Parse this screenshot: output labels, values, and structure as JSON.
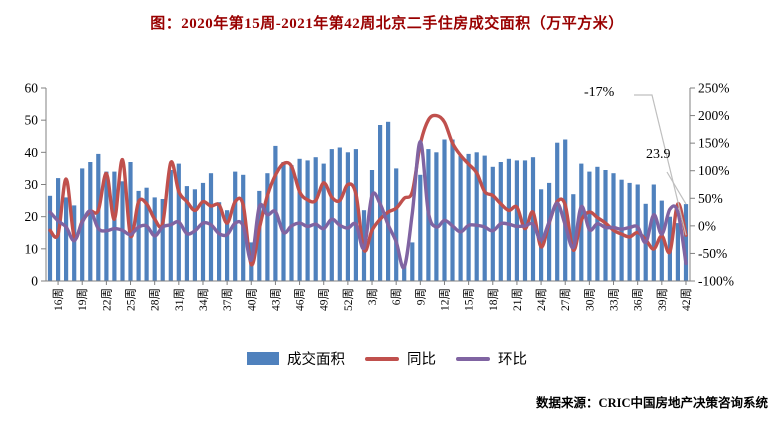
{
  "title": "图：2020年第15周-2021年第42周北京二手住房成交面积（万平方米）",
  "source": "数据来源：CRIC中国房地产决策咨询系统",
  "annotations": {
    "yoy_last_label": "-17%",
    "area_last_label": "23.9"
  },
  "legend": [
    {
      "label": "成交面积",
      "type": "bar",
      "color": "#4F81BD"
    },
    {
      "label": "同比",
      "type": "line",
      "color": "#C0504D"
    },
    {
      "label": "环比",
      "type": "line",
      "color": "#8064A2"
    }
  ],
  "colors": {
    "bar": "#4F81BD",
    "yoy_line": "#C0504D",
    "wow_line": "#8064A2",
    "title_text": "#990000",
    "axis": "#808080",
    "leader": "#BFBFBF"
  },
  "chart_data": {
    "type": "combo_bar_line",
    "title": "2020年第15周-2021年第42周北京二手住房成交面积（万平方米）",
    "week_ranges": [
      {
        "year": 2020,
        "start": 15,
        "end": 52
      },
      {
        "year": 2021,
        "start": 1,
        "end": 42
      }
    ],
    "x_tick_labels": [
      "16周",
      "19周",
      "22周",
      "25周",
      "28周",
      "31周",
      "34周",
      "37周",
      "40周",
      "43周",
      "46周",
      "49周",
      "52周",
      "3周",
      "6周",
      "9周",
      "12周",
      "15周",
      "18周",
      "21周",
      "24周",
      "27周",
      "30周",
      "33周",
      "36周",
      "39周",
      "42周"
    ],
    "x_tick_first_index": 1,
    "x_tick_step": 3,
    "left_axis": {
      "min": 0,
      "max": 60,
      "step": 10,
      "unit": "万平方米"
    },
    "right_axis": {
      "min": -100,
      "max": 250,
      "step": 50,
      "unit": "%"
    },
    "grid": false,
    "legend_position": "bottom",
    "series": [
      {
        "name": "成交面积",
        "type": "bar",
        "axis": "left",
        "color": "#4F81BD",
        "values": [
          26.5,
          32,
          26,
          23.5,
          35,
          37,
          39.5,
          34,
          34,
          31,
          37,
          28,
          29,
          26,
          25.5,
          34.5,
          36.5,
          29.5,
          28.5,
          30.5,
          33.5,
          24.5,
          22,
          34,
          33,
          12,
          28,
          33.5,
          42,
          37,
          36,
          38,
          37.5,
          38.5,
          36.5,
          41,
          41.5,
          40,
          41,
          22,
          34.5,
          48.5,
          49.5,
          35,
          4.5,
          12,
          33,
          41,
          40,
          44,
          44,
          39,
          39.5,
          40,
          39,
          35.5,
          37,
          38,
          37.5,
          37.5,
          38.5,
          28.5,
          30.5,
          43,
          44,
          27,
          36.5,
          34,
          35.5,
          34.5,
          33.5,
          31.5,
          30.5,
          30,
          24,
          30,
          25,
          20,
          18,
          23.9
        ]
      },
      {
        "name": "同比",
        "type": "line",
        "axis": "right",
        "color": "#C0504D",
        "values": [
          -8,
          -15,
          85,
          -20,
          8,
          26,
          28,
          95,
          12,
          120,
          -18,
          44,
          40,
          12,
          5,
          115,
          62,
          44,
          28,
          44,
          36,
          38,
          5,
          44,
          38,
          -70,
          -5,
          55,
          92,
          113,
          108,
          62,
          47,
          46,
          78,
          52,
          46,
          75,
          58,
          -44,
          -8,
          12,
          25,
          32,
          50,
          62,
          148,
          192,
          200,
          188,
          150,
          128,
          112,
          96,
          62,
          55,
          40,
          28,
          34,
          -5,
          25,
          -38,
          5,
          44,
          38,
          -44,
          10,
          25,
          15,
          5,
          -8,
          -15,
          -20,
          -12,
          -25,
          -42,
          -18,
          -47,
          40,
          -17
        ]
      },
      {
        "name": "环比",
        "type": "line",
        "axis": "right",
        "color": "#8064A2",
        "values": [
          25,
          9,
          -2,
          -27,
          6,
          27,
          -5,
          -9,
          -5,
          -8,
          -16,
          -2,
          0,
          -18,
          -2,
          2,
          7,
          -14,
          -9,
          5,
          2,
          -14,
          -16,
          5,
          0,
          -62,
          35,
          20,
          26,
          -12,
          0,
          5,
          -1,
          3,
          -5,
          12,
          1,
          -4,
          3,
          -40,
          55,
          40,
          2,
          -29,
          -75,
          23,
          153,
          24,
          -2,
          10,
          0,
          -11,
          1,
          1,
          -2,
          -9,
          4,
          3,
          -1,
          0,
          3,
          -26,
          7,
          41,
          2,
          -39,
          35,
          -7,
          4,
          -3,
          -3,
          -6,
          -3,
          -2,
          -30,
          20,
          -15,
          30,
          25,
          -68
        ]
      }
    ],
    "callouts": [
      {
        "text": "-17%",
        "series": "同比",
        "point": "last",
        "value_pct": -17
      },
      {
        "text": "23.9",
        "series": "成交面积",
        "point": "last",
        "value": 23.9
      }
    ]
  }
}
